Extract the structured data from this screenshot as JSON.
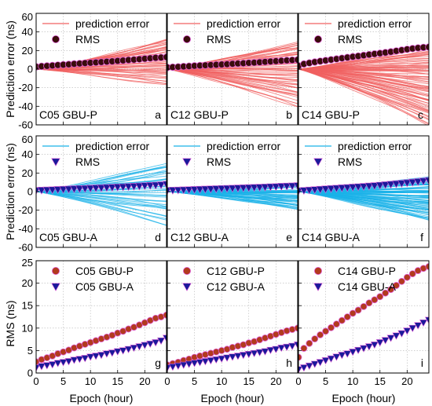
{
  "figure": {
    "ylabels": [
      "Prediction error (ns)",
      "Prediction error (ns)",
      "RMS (ns)"
    ],
    "xlabel": "Epoch (hour)"
  },
  "chart_data": [
    {
      "panel": "a",
      "type": "line",
      "row": 0,
      "col": 0,
      "label": "C05 GBU-P",
      "panel_letter": "a",
      "legend": [
        {
          "name": "prediction error",
          "style": "line",
          "color": "#f06060"
        },
        {
          "name": "RMS",
          "style": "circle",
          "color": "#3a0c0c"
        }
      ],
      "xlim": [
        0,
        24
      ],
      "ylim": [
        -60,
        60
      ],
      "xticks": [
        0,
        5,
        10,
        15,
        20
      ],
      "yticks": [
        -60,
        -40,
        -20,
        0,
        20,
        40,
        60
      ],
      "spread": {
        "upper_end": 32,
        "lower_end": -18,
        "n_lines": 50,
        "color": "#f06060"
      },
      "series": [
        {
          "name": "RMS",
          "marker": "circle",
          "color": "#3a0c0c",
          "x": [
            0,
            1,
            2,
            3,
            4,
            5,
            6,
            7,
            8,
            9,
            10,
            11,
            12,
            13,
            14,
            15,
            16,
            17,
            18,
            19,
            20,
            21,
            22,
            23,
            24
          ],
          "values": [
            2.5,
            3.0,
            3.4,
            3.8,
            4.3,
            4.7,
            5.1,
            5.6,
            6.0,
            6.4,
            6.8,
            7.2,
            7.6,
            8.0,
            8.4,
            8.9,
            9.3,
            9.8,
            10.2,
            10.7,
            11.2,
            11.7,
            12.2,
            12.5,
            12.9
          ]
        }
      ]
    },
    {
      "panel": "b",
      "type": "line",
      "row": 0,
      "col": 1,
      "label": "C12 GBU-P",
      "panel_letter": "b",
      "legend": [
        {
          "name": "prediction error",
          "style": "line",
          "color": "#f06060"
        },
        {
          "name": "RMS",
          "style": "circle",
          "color": "#3a0c0c"
        }
      ],
      "xlim": [
        0,
        24
      ],
      "ylim": [
        -60,
        60
      ],
      "xticks": [
        0,
        5,
        10,
        15,
        20
      ],
      "yticks": [
        -60,
        -40,
        -20,
        0,
        20,
        40,
        60
      ],
      "spread": {
        "upper_end": 30,
        "lower_end": -42,
        "n_lines": 60,
        "color": "#f06060"
      },
      "series": [
        {
          "name": "RMS",
          "marker": "circle",
          "color": "#3a0c0c",
          "x": [
            0,
            1,
            2,
            3,
            4,
            5,
            6,
            7,
            8,
            9,
            10,
            11,
            12,
            13,
            14,
            15,
            16,
            17,
            18,
            19,
            20,
            21,
            22,
            23,
            24
          ],
          "values": [
            1.8,
            2.1,
            2.4,
            2.8,
            3.1,
            3.5,
            3.8,
            4.1,
            4.4,
            4.7,
            5.0,
            5.3,
            5.7,
            6.0,
            6.3,
            6.7,
            7.0,
            7.4,
            7.8,
            8.2,
            8.6,
            9.0,
            9.4,
            9.7,
            10.0
          ]
        }
      ]
    },
    {
      "panel": "c",
      "type": "line",
      "row": 0,
      "col": 2,
      "label": "C14 GBU-P",
      "panel_letter": "c",
      "legend": [
        {
          "name": "prediction error",
          "style": "line",
          "color": "#f06060"
        },
        {
          "name": "RMS",
          "style": "circle",
          "color": "#3a0c0c"
        }
      ],
      "xlim": [
        0,
        24
      ],
      "ylim": [
        -60,
        60
      ],
      "xticks": [
        0,
        5,
        10,
        15,
        20
      ],
      "yticks": [
        -60,
        -40,
        -20,
        0,
        20,
        40,
        60
      ],
      "spread": {
        "upper_end": 24,
        "lower_end": -62,
        "n_lines": 80,
        "color": "#f06060"
      },
      "series": [
        {
          "name": "RMS",
          "marker": "circle",
          "color": "#3a0c0c",
          "x": [
            0,
            1,
            2,
            3,
            4,
            5,
            6,
            7,
            8,
            9,
            10,
            11,
            12,
            13,
            14,
            15,
            16,
            17,
            18,
            19,
            20,
            21,
            22,
            23,
            24
          ],
          "values": [
            3.5,
            5.5,
            6.6,
            7.6,
            8.5,
            9.3,
            10.1,
            10.9,
            11.7,
            12.5,
            13.3,
            14.0,
            14.8,
            15.6,
            16.3,
            17.0,
            17.8,
            18.6,
            19.5,
            20.4,
            21.3,
            22.1,
            22.8,
            23.3,
            23.7
          ]
        }
      ]
    },
    {
      "panel": "d",
      "type": "line",
      "row": 1,
      "col": 0,
      "label": "C05 GBU-A",
      "panel_letter": "d",
      "legend": [
        {
          "name": "prediction error",
          "style": "line",
          "color": "#19b2e8"
        },
        {
          "name": "RMS",
          "style": "triangle",
          "color": "#1a1a9a"
        }
      ],
      "xlim": [
        0,
        24
      ],
      "ylim": [
        -60,
        60
      ],
      "xticks": [
        0,
        5,
        10,
        15,
        20
      ],
      "yticks": [
        -60,
        -40,
        -20,
        0,
        20,
        40,
        60
      ],
      "spread": {
        "upper_end": 30,
        "lower_end": -37,
        "n_lines": 40,
        "color": "#19b2e8"
      },
      "series": [
        {
          "name": "RMS",
          "marker": "triangle",
          "color": "#1a1a9a",
          "x": [
            0,
            1,
            2,
            3,
            4,
            5,
            6,
            7,
            8,
            9,
            10,
            11,
            12,
            13,
            14,
            15,
            16,
            17,
            18,
            19,
            20,
            21,
            22,
            23,
            24
          ],
          "values": [
            1.2,
            1.5,
            1.7,
            1.9,
            2.2,
            2.4,
            2.6,
            2.9,
            3.1,
            3.3,
            3.6,
            3.8,
            4.0,
            4.3,
            4.5,
            4.8,
            5.0,
            5.3,
            5.6,
            5.9,
            6.2,
            6.5,
            6.8,
            7.2,
            7.8
          ]
        }
      ]
    },
    {
      "panel": "e",
      "type": "line",
      "row": 1,
      "col": 1,
      "label": "C12 GBU-A",
      "panel_letter": "e",
      "legend": [
        {
          "name": "prediction error",
          "style": "line",
          "color": "#19b2e8"
        },
        {
          "name": "RMS",
          "style": "triangle",
          "color": "#1a1a9a"
        }
      ],
      "xlim": [
        0,
        24
      ],
      "ylim": [
        -60,
        60
      ],
      "xticks": [
        0,
        5,
        10,
        15,
        20
      ],
      "yticks": [
        -60,
        -40,
        -20,
        0,
        20,
        40,
        60
      ],
      "spread": {
        "upper_end": 10,
        "lower_end": -20,
        "n_lines": 60,
        "color": "#19b2e8"
      },
      "series": [
        {
          "name": "RMS",
          "marker": "triangle",
          "color": "#1a1a9a",
          "x": [
            0,
            1,
            2,
            3,
            4,
            5,
            6,
            7,
            8,
            9,
            10,
            11,
            12,
            13,
            14,
            15,
            16,
            17,
            18,
            19,
            20,
            21,
            22,
            23,
            24
          ],
          "values": [
            1.2,
            1.4,
            1.6,
            1.8,
            2.0,
            2.2,
            2.4,
            2.6,
            2.8,
            3.0,
            3.2,
            3.4,
            3.6,
            3.8,
            4.0,
            4.2,
            4.4,
            4.6,
            4.8,
            5.1,
            5.3,
            5.6,
            5.8,
            6.0,
            6.3
          ]
        }
      ]
    },
    {
      "panel": "f",
      "type": "line",
      "row": 1,
      "col": 2,
      "label": "C14 GBU-A",
      "panel_letter": "f",
      "legend": [
        {
          "name": "prediction error",
          "style": "line",
          "color": "#19b2e8"
        },
        {
          "name": "RMS",
          "style": "triangle",
          "color": "#1a1a9a"
        }
      ],
      "xlim": [
        0,
        24
      ],
      "ylim": [
        -60,
        60
      ],
      "xticks": [
        0,
        5,
        10,
        15,
        20
      ],
      "yticks": [
        -60,
        -40,
        -20,
        0,
        20,
        40,
        60
      ],
      "spread": {
        "upper_end": 15,
        "lower_end": -32,
        "n_lines": 80,
        "color": "#19b2e8"
      },
      "series": [
        {
          "name": "RMS",
          "marker": "triangle",
          "color": "#1a1a9a",
          "x": [
            0,
            1,
            2,
            3,
            4,
            5,
            6,
            7,
            8,
            9,
            10,
            11,
            12,
            13,
            14,
            15,
            16,
            17,
            18,
            19,
            20,
            21,
            22,
            23,
            24
          ],
          "values": [
            0.8,
            1.2,
            1.6,
            2.0,
            2.4,
            2.8,
            3.2,
            3.6,
            4.0,
            4.3,
            4.7,
            5.1,
            5.5,
            5.9,
            6.3,
            6.8,
            7.3,
            7.8,
            8.3,
            8.8,
            9.4,
            10.0,
            10.6,
            11.2,
            11.8
          ]
        }
      ]
    },
    {
      "panel": "g",
      "type": "line",
      "row": 2,
      "col": 0,
      "panel_letter": "g",
      "legend": [
        {
          "name": "C05 GBU-P",
          "style": "circle",
          "color": "#b23a1e"
        },
        {
          "name": "C05 GBU-A",
          "style": "triangle",
          "color": "#1a1a9a"
        }
      ],
      "xlim": [
        0,
        24
      ],
      "ylim": [
        0,
        25
      ],
      "xticks": [
        0,
        5,
        10,
        15,
        20
      ],
      "yticks": [
        0,
        5,
        10,
        15,
        20,
        25
      ],
      "series": [
        {
          "name": "C05 GBU-P",
          "marker": "circle",
          "color": "#b23a1e",
          "x": [
            0,
            1,
            2,
            3,
            4,
            5,
            6,
            7,
            8,
            9,
            10,
            11,
            12,
            13,
            14,
            15,
            16,
            17,
            18,
            19,
            20,
            21,
            22,
            23,
            24
          ],
          "values": [
            2.5,
            3.0,
            3.4,
            3.8,
            4.3,
            4.7,
            5.1,
            5.6,
            6.0,
            6.4,
            6.8,
            7.2,
            7.6,
            8.0,
            8.4,
            8.9,
            9.3,
            9.8,
            10.2,
            10.7,
            11.2,
            11.7,
            12.2,
            12.5,
            12.9
          ]
        },
        {
          "name": "C05 GBU-A",
          "marker": "triangle",
          "color": "#1a1a9a",
          "x": [
            0,
            1,
            2,
            3,
            4,
            5,
            6,
            7,
            8,
            9,
            10,
            11,
            12,
            13,
            14,
            15,
            16,
            17,
            18,
            19,
            20,
            21,
            22,
            23,
            24
          ],
          "values": [
            1.2,
            1.5,
            1.7,
            1.9,
            2.2,
            2.4,
            2.6,
            2.9,
            3.1,
            3.3,
            3.6,
            3.8,
            4.0,
            4.3,
            4.5,
            4.8,
            5.0,
            5.3,
            5.6,
            5.9,
            6.2,
            6.5,
            6.8,
            7.2,
            7.8
          ]
        }
      ]
    },
    {
      "panel": "h",
      "type": "line",
      "row": 2,
      "col": 1,
      "panel_letter": "h",
      "legend": [
        {
          "name": "C12 GBU-P",
          "style": "circle",
          "color": "#b23a1e"
        },
        {
          "name": "C12 GBU-A",
          "style": "triangle",
          "color": "#1a1a9a"
        }
      ],
      "xlim": [
        0,
        24
      ],
      "ylim": [
        0,
        25
      ],
      "xticks": [
        0,
        5,
        10,
        15,
        20
      ],
      "yticks": [
        0,
        5,
        10,
        15,
        20,
        25
      ],
      "series": [
        {
          "name": "C12 GBU-P",
          "marker": "circle",
          "color": "#b23a1e",
          "x": [
            0,
            1,
            2,
            3,
            4,
            5,
            6,
            7,
            8,
            9,
            10,
            11,
            12,
            13,
            14,
            15,
            16,
            17,
            18,
            19,
            20,
            21,
            22,
            23,
            24
          ],
          "values": [
            1.8,
            2.1,
            2.4,
            2.8,
            3.1,
            3.5,
            3.8,
            4.1,
            4.4,
            4.7,
            5.0,
            5.3,
            5.7,
            6.0,
            6.3,
            6.7,
            7.0,
            7.4,
            7.8,
            8.2,
            8.6,
            9.0,
            9.4,
            9.7,
            10.0
          ]
        },
        {
          "name": "C12 GBU-A",
          "marker": "triangle",
          "color": "#1a1a9a",
          "x": [
            0,
            1,
            2,
            3,
            4,
            5,
            6,
            7,
            8,
            9,
            10,
            11,
            12,
            13,
            14,
            15,
            16,
            17,
            18,
            19,
            20,
            21,
            22,
            23,
            24
          ],
          "values": [
            1.2,
            1.4,
            1.6,
            1.8,
            2.0,
            2.2,
            2.4,
            2.6,
            2.8,
            3.0,
            3.2,
            3.4,
            3.6,
            3.8,
            4.0,
            4.2,
            4.4,
            4.6,
            4.8,
            5.1,
            5.3,
            5.6,
            5.8,
            6.0,
            6.3
          ]
        }
      ]
    },
    {
      "panel": "i",
      "type": "line",
      "row": 2,
      "col": 2,
      "panel_letter": "i",
      "legend": [
        {
          "name": "C14 GBU-P",
          "style": "circle",
          "color": "#b23a1e"
        },
        {
          "name": "C14 GBU-A",
          "style": "triangle",
          "color": "#1a1a9a"
        }
      ],
      "xlim": [
        0,
        24
      ],
      "ylim": [
        0,
        25
      ],
      "xticks": [
        0,
        5,
        10,
        15,
        20
      ],
      "yticks": [
        0,
        5,
        10,
        15,
        20,
        25
      ],
      "series": [
        {
          "name": "C14 GBU-P",
          "marker": "circle",
          "color": "#b23a1e",
          "x": [
            0,
            1,
            2,
            3,
            4,
            5,
            6,
            7,
            8,
            9,
            10,
            11,
            12,
            13,
            14,
            15,
            16,
            17,
            18,
            19,
            20,
            21,
            22,
            23,
            24
          ],
          "values": [
            3.5,
            5.5,
            6.6,
            7.6,
            8.5,
            9.3,
            10.1,
            10.9,
            11.7,
            12.5,
            13.3,
            14.0,
            14.8,
            15.6,
            16.3,
            17.0,
            17.8,
            18.6,
            19.5,
            20.4,
            21.3,
            22.1,
            22.8,
            23.3,
            23.7
          ]
        },
        {
          "name": "C14 GBU-A",
          "marker": "triangle",
          "color": "#1a1a9a",
          "x": [
            0,
            1,
            2,
            3,
            4,
            5,
            6,
            7,
            8,
            9,
            10,
            11,
            12,
            13,
            14,
            15,
            16,
            17,
            18,
            19,
            20,
            21,
            22,
            23,
            24
          ],
          "values": [
            0.8,
            1.2,
            1.6,
            2.0,
            2.4,
            2.8,
            3.2,
            3.6,
            4.0,
            4.3,
            4.7,
            5.1,
            5.5,
            5.9,
            6.3,
            6.8,
            7.3,
            7.8,
            8.3,
            8.8,
            9.4,
            10.0,
            10.6,
            11.2,
            11.8
          ]
        }
      ]
    }
  ]
}
